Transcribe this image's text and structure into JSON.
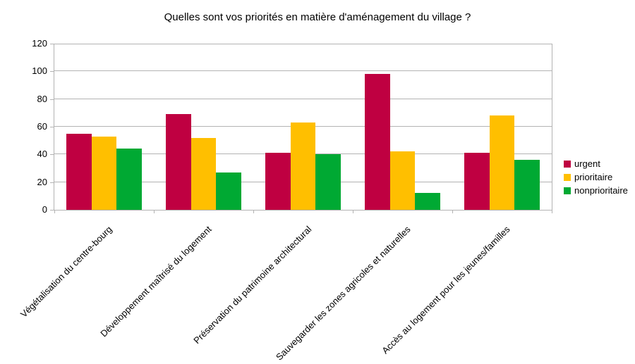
{
  "title": "Quelles sont vos priorités en matière d'aménagement du village ?",
  "chart_data": {
    "type": "bar",
    "title": "Quelles sont vos priorités en matière d'aménagement du village ?",
    "categories": [
      "Végétalisation du centre-bourg",
      "Développement maîtrisé du logement",
      "Préservation du patrimoine architectural",
      "Sauvegarder les zones agricoles et naturelles",
      "Accès au logement pour les jeunes/familles"
    ],
    "series": [
      {
        "name": "urgent",
        "color": "#BF0041",
        "values": [
          55,
          69,
          41,
          98,
          41
        ]
      },
      {
        "name": "prioritaire",
        "color": "#FFBF00",
        "values": [
          53,
          52,
          63,
          42,
          68
        ]
      },
      {
        "name": "nonprioritaire",
        "color": "#00A933",
        "values": [
          44,
          27,
          40,
          12,
          36
        ]
      }
    ],
    "xlabel": "",
    "ylabel": "",
    "ylim": [
      0,
      120
    ],
    "yticks": [
      0,
      20,
      40,
      60,
      80,
      100,
      120
    ],
    "grid": true,
    "gridline_color": "#b3b3b3",
    "legend_position": "right",
    "background_color": "#ffffff",
    "text_color": "#000000"
  }
}
